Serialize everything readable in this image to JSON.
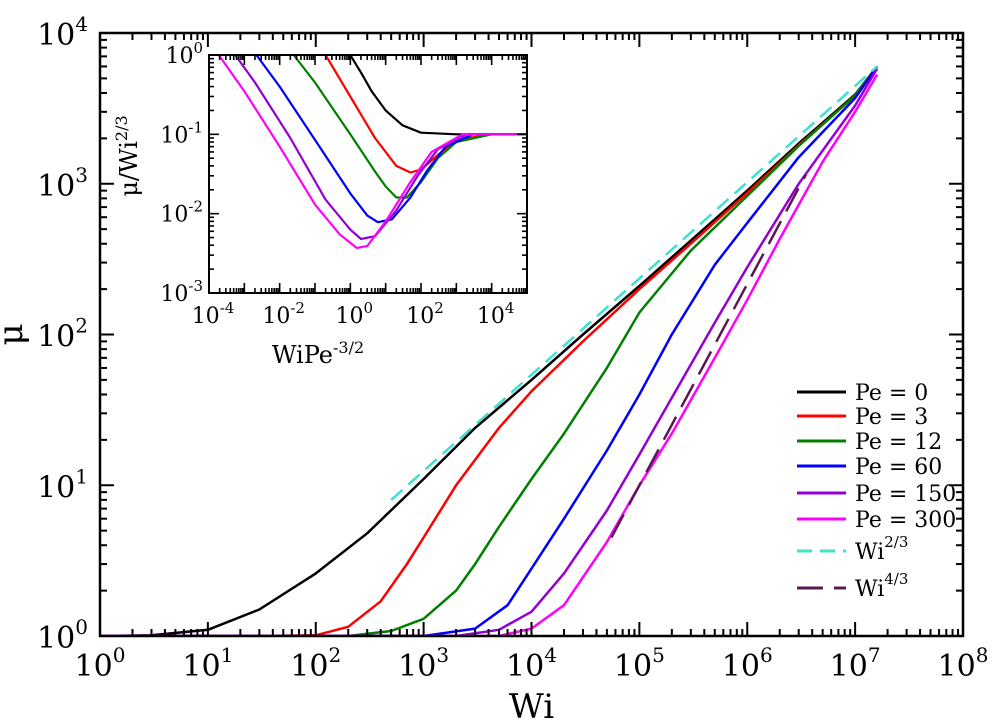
{
  "chart_data": [
    {
      "type": "line",
      "scale": "log-log",
      "xlabel": {
        "base": "Wi",
        "sup": ""
      },
      "ylabel": {
        "base": "μ",
        "sup": ""
      },
      "xlim": [
        1,
        100000000
      ],
      "ylim": [
        1,
        10000
      ],
      "x_ticks": [
        {
          "base": "10",
          "exp": "0"
        },
        {
          "base": "10",
          "exp": "1"
        },
        {
          "base": "10",
          "exp": "2"
        },
        {
          "base": "10",
          "exp": "3"
        },
        {
          "base": "10",
          "exp": "4"
        },
        {
          "base": "10",
          "exp": "5"
        },
        {
          "base": "10",
          "exp": "6"
        },
        {
          "base": "10",
          "exp": "7"
        },
        {
          "base": "10",
          "exp": "8"
        }
      ],
      "y_ticks": [
        {
          "base": "10",
          "exp": "0"
        },
        {
          "base": "10",
          "exp": "1"
        },
        {
          "base": "10",
          "exp": "2"
        },
        {
          "base": "10",
          "exp": "3"
        },
        {
          "base": "10",
          "exp": "4"
        }
      ],
      "legend_position": "bottom-right",
      "series": [
        {
          "name": "Pe = 0",
          "color": "#000000",
          "dash": "solid",
          "x": [
            1,
            3,
            10,
            30,
            100,
            300,
            1000,
            3000,
            10000,
            30000,
            100000,
            300000,
            1000000,
            3000000,
            10000000,
            16000000
          ],
          "y": [
            1.0,
            1.01,
            1.1,
            1.5,
            2.6,
            4.8,
            11,
            24,
            50,
            100,
            210,
            420,
            900,
            1850,
            3900,
            6000
          ]
        },
        {
          "name": "Pe = 3",
          "color": "#ff0000",
          "dash": "solid",
          "x": [
            1,
            30,
            100,
            200,
            400,
            700,
            1000,
            2000,
            5000,
            10000,
            30000,
            100000,
            300000,
            1000000,
            3000000,
            10000000,
            16000000
          ],
          "y": [
            1.0,
            1.0,
            1.01,
            1.15,
            1.7,
            3.0,
            4.5,
            10,
            24,
            42,
            90,
            200,
            400,
            870,
            1800,
            3850,
            6000
          ]
        },
        {
          "name": "Pe = 12",
          "color": "#008000",
          "dash": "solid",
          "x": [
            1,
            200,
            500,
            1000,
            2000,
            3000,
            5000,
            10000,
            20000,
            50000,
            100000,
            300000,
            1000000,
            3000000,
            10000000,
            16000000
          ],
          "y": [
            1.0,
            1.0,
            1.08,
            1.3,
            2.0,
            3.0,
            5.3,
            11,
            22,
            60,
            140,
            360,
            830,
            1780,
            3850,
            6000
          ]
        },
        {
          "name": "Pe = 60",
          "color": "#0000ff",
          "dash": "solid",
          "x": [
            1,
            1000,
            3000,
            6000,
            10000,
            20000,
            50000,
            100000,
            200000,
            500000,
            1000000,
            3000000,
            10000000,
            16000000
          ],
          "y": [
            1.0,
            1.0,
            1.12,
            1.6,
            2.8,
            6.0,
            17,
            40,
            100,
            290,
            550,
            1500,
            3700,
            6000
          ]
        },
        {
          "name": "Pe = 150",
          "color": "#9400d3",
          "dash": "solid",
          "x": [
            1,
            2000,
            5000,
            10000,
            20000,
            50000,
            100000,
            200000,
            500000,
            1000000,
            3000000,
            10000000,
            16000000
          ],
          "y": [
            1.0,
            1.0,
            1.1,
            1.45,
            2.6,
            6.8,
            16,
            38,
            120,
            280,
            1000,
            3300,
            5800
          ]
        },
        {
          "name": "Pe = 300",
          "color": "#ff00ff",
          "dash": "solid",
          "x": [
            1,
            5000,
            10000,
            20000,
            50000,
            100000,
            200000,
            500000,
            1000000,
            2000000,
            5000000,
            10000000,
            16000000
          ],
          "y": [
            1.0,
            1.0,
            1.12,
            1.6,
            4.2,
            10,
            22,
            70,
            170,
            430,
            1400,
            3000,
            5300
          ]
        },
        {
          "name": "Wi",
          "sup": "2/3",
          "color": "#40e0d0",
          "dash": "15,8",
          "x": [
            500,
            16000000
          ],
          "y": [
            8,
            6000
          ]
        },
        {
          "name": "Wi",
          "sup": "4/3",
          "color": "#5a1a50",
          "dash": "26,11",
          "x": [
            55000,
            3500000
          ],
          "y": [
            4.5,
            1150
          ]
        }
      ]
    },
    {
      "type": "line",
      "scale": "log-log",
      "inset": true,
      "xlabel": {
        "base": "WiPe",
        "sup": "-3/2"
      },
      "ylabel": {
        "base": "μ/Wi",
        "sup": "2/3"
      },
      "xlim": [
        0.0001,
        100000
      ],
      "ylim": [
        0.001,
        1
      ],
      "x_ticks": [
        {
          "base": "10",
          "exp": "-4"
        },
        {
          "base": "10",
          "exp": "-2"
        },
        {
          "base": "10",
          "exp": "0"
        },
        {
          "base": "10",
          "exp": "2"
        },
        {
          "base": "10",
          "exp": "4"
        }
      ],
      "y_ticks": [
        {
          "base": "10",
          "exp": "-3"
        },
        {
          "base": "10",
          "exp": "-2"
        },
        {
          "base": "10",
          "exp": "-1"
        },
        {
          "base": "10",
          "exp": "0"
        }
      ],
      "series": [
        {
          "name": "Pe = 0",
          "color": "#000000",
          "x": [
            1,
            2,
            4,
            10,
            30,
            100,
            1000,
            10000,
            100000
          ],
          "y": [
            1.0,
            0.6,
            0.35,
            0.2,
            0.13,
            0.105,
            0.1,
            0.1,
            0.1
          ]
        },
        {
          "name": "Pe = 3",
          "color": "#ff0000",
          "x": [
            0.2,
            1,
            5,
            20,
            50,
            100,
            300,
            1000,
            10000,
            100000
          ],
          "y": [
            1.0,
            0.3,
            0.09,
            0.04,
            0.033,
            0.036,
            0.055,
            0.085,
            0.1,
            0.1
          ]
        },
        {
          "name": "Pe = 12",
          "color": "#008000",
          "x": [
            0.025,
            0.1,
            1,
            5,
            10,
            20,
            40,
            100,
            300,
            1000,
            10000,
            100000
          ],
          "y": [
            1.0,
            0.45,
            0.1,
            0.034,
            0.022,
            0.016,
            0.016,
            0.025,
            0.05,
            0.08,
            0.1,
            0.1
          ]
        },
        {
          "name": "Pe = 60",
          "color": "#0000ff",
          "x": [
            0.0022,
            0.01,
            0.1,
            1,
            3,
            6,
            15,
            50,
            150,
            500,
            3000,
            100000
          ],
          "y": [
            1.0,
            0.4,
            0.085,
            0.018,
            0.0095,
            0.0078,
            0.0085,
            0.016,
            0.035,
            0.07,
            0.1,
            0.1
          ]
        },
        {
          "name": "Pe = 150",
          "color": "#9400d3",
          "x": [
            0.00055,
            0.002,
            0.02,
            0.2,
            1,
            2,
            5,
            20,
            80,
            300,
            2000,
            100000
          ],
          "y": [
            1.0,
            0.45,
            0.09,
            0.015,
            0.0063,
            0.0048,
            0.0052,
            0.011,
            0.03,
            0.065,
            0.1,
            0.1
          ]
        },
        {
          "name": "Pe = 300",
          "color": "#ff00ff",
          "x": [
            0.00019,
            0.001,
            0.01,
            0.1,
            0.5,
            1.5,
            3,
            10,
            50,
            200,
            1500,
            100000
          ],
          "y": [
            1.0,
            0.35,
            0.07,
            0.013,
            0.0055,
            0.0037,
            0.0039,
            0.008,
            0.025,
            0.06,
            0.1,
            0.1
          ]
        }
      ]
    }
  ]
}
